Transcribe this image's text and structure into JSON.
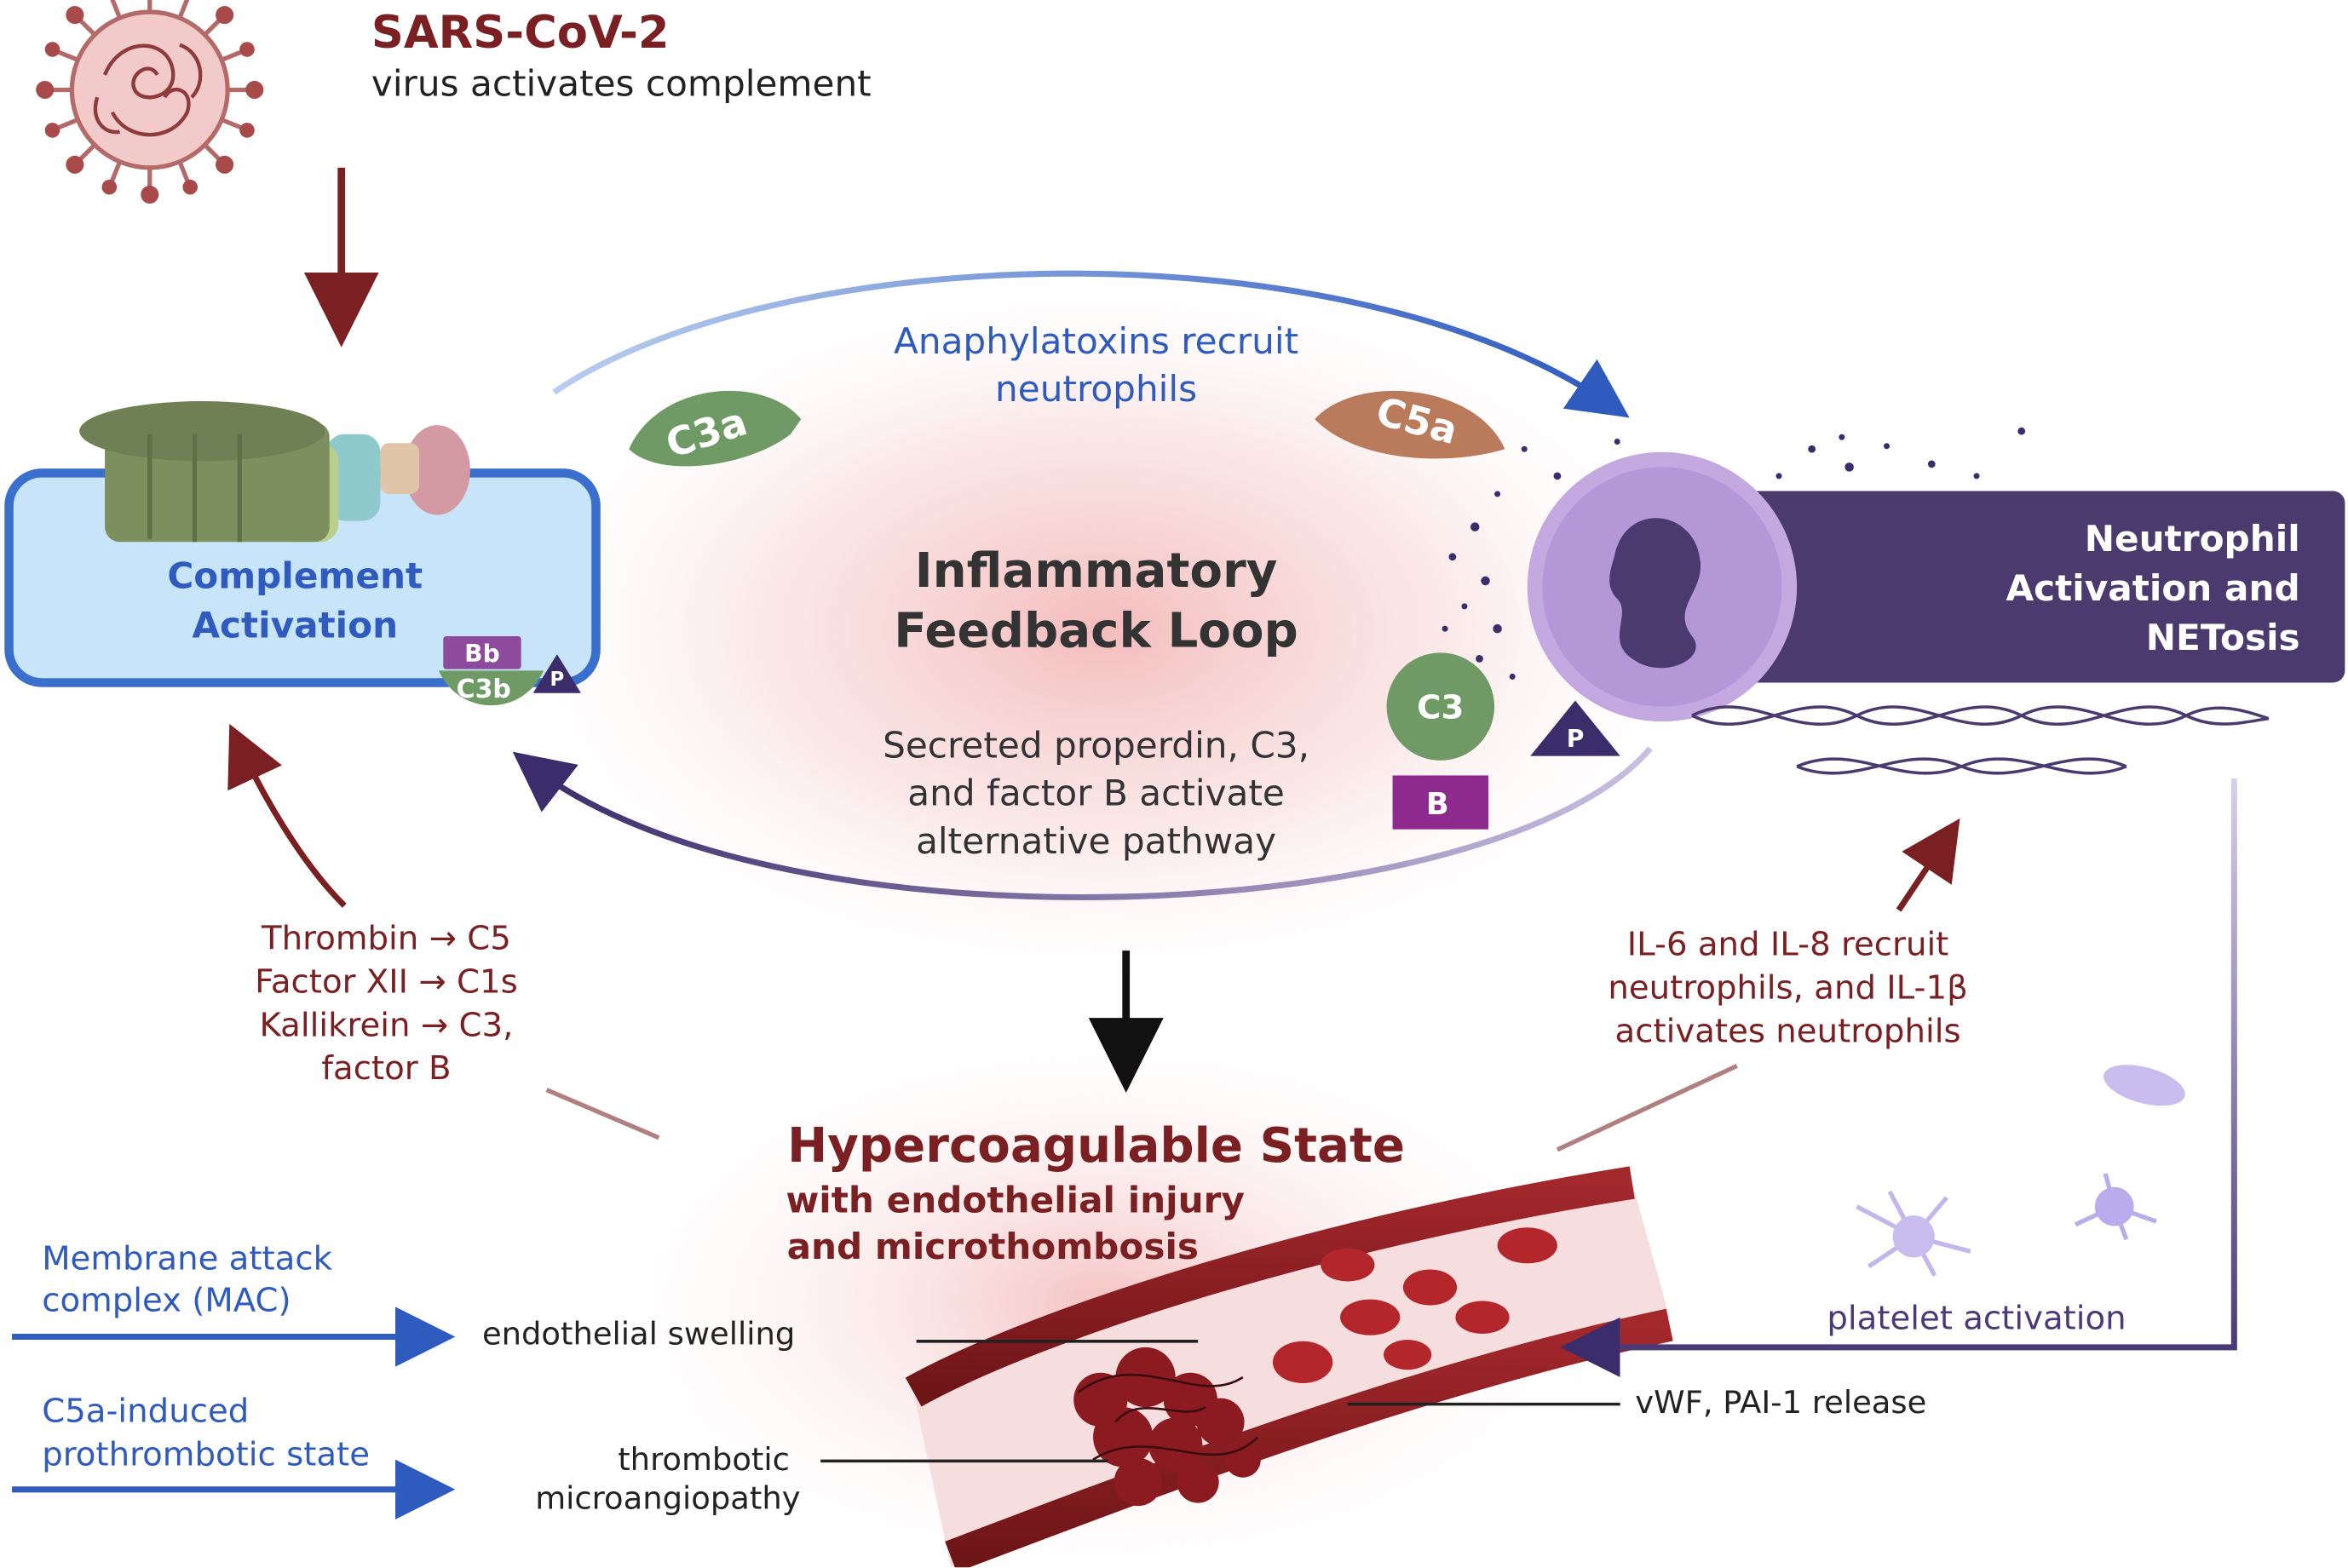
{
  "header": {
    "title": "SARS-CoV-2",
    "subtitle": "virus activates complement"
  },
  "complement_box": {
    "line1": "Complement",
    "line2": "Activation",
    "tag_bb": "Bb",
    "tag_c3b": "C3b",
    "tag_p": "P"
  },
  "neutrophil_box": {
    "line1": "Neutrophil",
    "line2": "Activation and",
    "line3": "NETosis"
  },
  "loop": {
    "top_line1": "Anaphylatoxins recruit",
    "top_line2": "neutrophils",
    "title_line1": "Inflammatory",
    "title_line2": "Feedback Loop",
    "bottom_line1": "Secreted properdin, C3,",
    "bottom_line2": "and factor B activate",
    "bottom_line3": "alternative pathway",
    "badge_c3a": "C3a",
    "badge_c5a": "C5a",
    "badge_c3": "C3",
    "badge_p": "P",
    "badge_b": "B"
  },
  "coag_to_complement": {
    "line1": "Thrombin → C5",
    "line2": "Factor XII → C1s",
    "line3": "Kallikrein → C3,",
    "line4": "factor B"
  },
  "cytokines": {
    "line1": "IL-6 and IL-8 recruit",
    "line2": "neutrophils, and IL-1β",
    "line3": "activates neutrophils"
  },
  "hypercoag": {
    "title": "Hypercoagulable State",
    "sub1": "with endothelial injury",
    "sub2": "and microthombosis"
  },
  "left_notes": {
    "mac1": "Membrane attack",
    "mac2": "complex (MAC)",
    "c5a1": "C5a-induced",
    "c5a2": "prothrombotic state"
  },
  "vessel_labels": {
    "swelling": "endothelial swelling",
    "tma1": "thrombotic",
    "tma2": "microangiopathy",
    "vwf": "vWF, PAI-1 release",
    "platelet": "platelet activation"
  },
  "colors": {
    "dark_red": "#7a1f22",
    "blue": "#2f5bbf",
    "purple": "#4a3a78",
    "complement_fill": "#c8e4f8",
    "neutrophil_fill": "#4b3a6e"
  },
  "icons": [
    "virus-icon",
    "complement-protein-icon",
    "neutrophil-icon",
    "net-dna-icon",
    "platelet-icon",
    "blood-vessel-icon"
  ]
}
